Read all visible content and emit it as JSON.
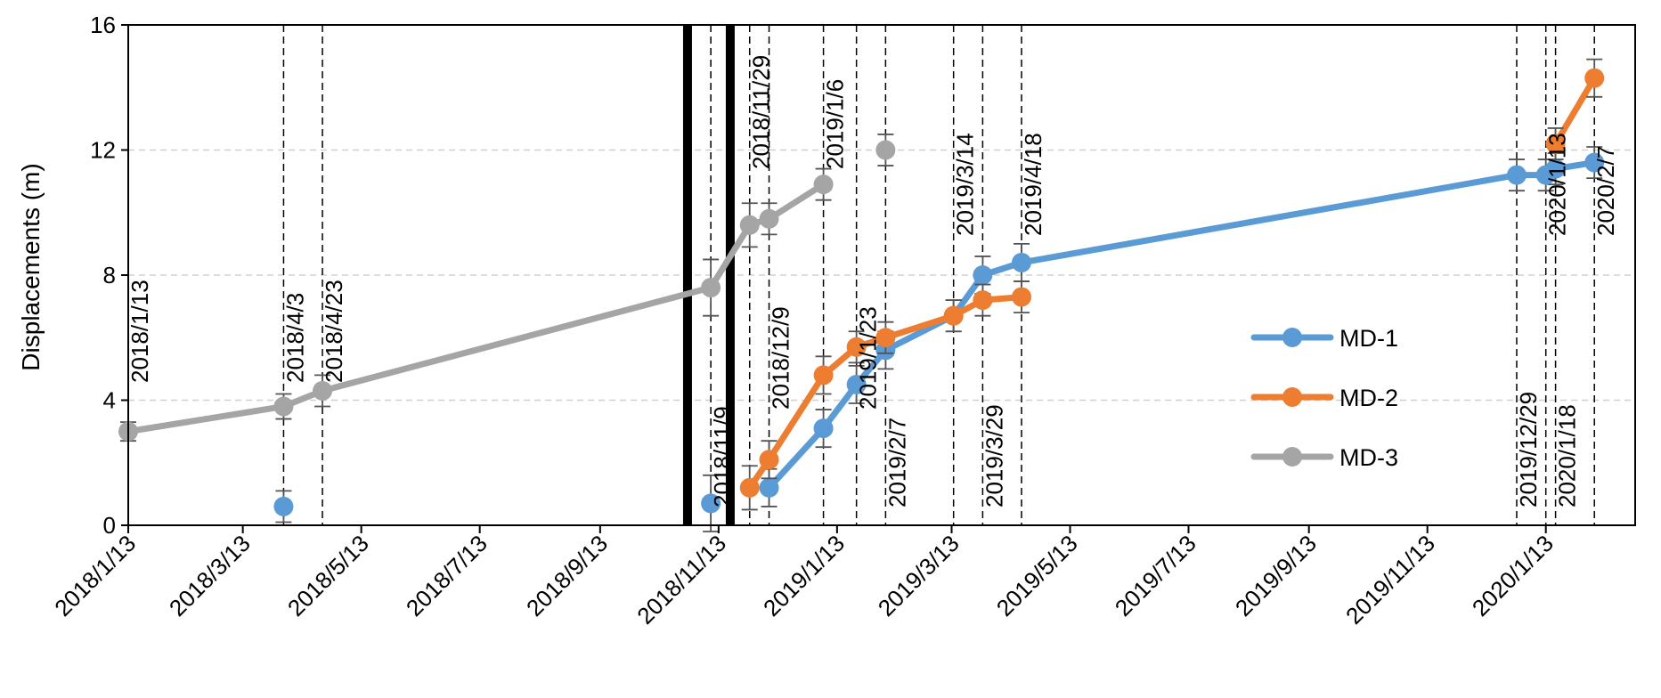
{
  "chart_data": {
    "type": "line",
    "title": "",
    "xlabel": "",
    "ylabel": "Displacements (m)",
    "x_axis": {
      "min": "2018-01-13",
      "max": "2020-02-28",
      "ticks": [
        {
          "date": "2018-01-13",
          "label": "2018/1/13"
        },
        {
          "date": "2018-03-13",
          "label": "2018/3/13"
        },
        {
          "date": "2018-05-13",
          "label": "2018/5/13"
        },
        {
          "date": "2018-07-13",
          "label": "2018/7/13"
        },
        {
          "date": "2018-09-13",
          "label": "2018/9/13"
        },
        {
          "date": "2018-11-13",
          "label": "2018/11/13"
        },
        {
          "date": "2019-01-13",
          "label": "2019/1/13"
        },
        {
          "date": "2019-03-13",
          "label": "2019/3/13"
        },
        {
          "date": "2019-05-13",
          "label": "2019/5/13"
        },
        {
          "date": "2019-07-13",
          "label": "2019/7/13"
        },
        {
          "date": "2019-09-13",
          "label": "2019/9/13"
        },
        {
          "date": "2019-11-13",
          "label": "2019/11/13"
        },
        {
          "date": "2020-01-13",
          "label": "2020/1/13"
        }
      ]
    },
    "y_axis": {
      "min": 0,
      "max": 16,
      "ticks": [
        0,
        4,
        8,
        12,
        16
      ]
    },
    "grid": {
      "y": true,
      "x": false
    },
    "legend": {
      "position": "center-right",
      "entries": [
        "MD-1",
        "MD-2",
        "MD-3"
      ]
    },
    "colors": {
      "MD-1": "#5B9BD5",
      "MD-2": "#ED7D31",
      "MD-3": "#A5A5A5"
    },
    "series": [
      {
        "name": "MD-1",
        "color": "#5B9BD5",
        "points": [
          {
            "x": "2018-04-03",
            "y": 0.6,
            "err": 0.5,
            "connected": false
          },
          {
            "x": "2018-11-09",
            "y": 0.7,
            "err": 0.9,
            "connected": false
          },
          {
            "x": "2018-12-09",
            "y": 1.2,
            "err": 0.6,
            "connected": true
          },
          {
            "x": "2019-01-06",
            "y": 3.1,
            "err": 0.6,
            "connected": true
          },
          {
            "x": "2019-01-23",
            "y": 4.5,
            "err": 0.6,
            "connected": true
          },
          {
            "x": "2019-02-07",
            "y": 5.6,
            "err": 0.6,
            "connected": true
          },
          {
            "x": "2019-03-14",
            "y": 6.7,
            "err": 0.5,
            "connected": true
          },
          {
            "x": "2019-03-29",
            "y": 8.0,
            "err": 0.6,
            "connected": true
          },
          {
            "x": "2019-04-18",
            "y": 8.4,
            "err": 0.6,
            "connected": true
          },
          {
            "x": "2019-12-29",
            "y": 11.2,
            "err": 0.5,
            "connected": true
          },
          {
            "x": "2020-01-13",
            "y": 11.2,
            "err": 0.5,
            "connected": true
          },
          {
            "x": "2020-01-18",
            "y": 11.4,
            "err": 0.5,
            "connected": true
          },
          {
            "x": "2020-02-07",
            "y": 11.6,
            "err": 0.5,
            "connected": true
          }
        ]
      },
      {
        "name": "MD-2",
        "color": "#ED7D31",
        "points": [
          {
            "x": "2018-11-29",
            "y": 1.2,
            "err": 0.7,
            "connected": true
          },
          {
            "x": "2018-12-09",
            "y": 2.1,
            "err": 0.6,
            "connected": true
          },
          {
            "x": "2019-01-06",
            "y": 4.8,
            "err": 0.6,
            "connected": true
          },
          {
            "x": "2019-01-23",
            "y": 5.7,
            "err": 0.5,
            "connected": true
          },
          {
            "x": "2019-02-07",
            "y": 6.0,
            "err": 0.5,
            "connected": true
          },
          {
            "x": "2019-03-14",
            "y": 6.7,
            "err": 0.5,
            "connected": true
          },
          {
            "x": "2019-03-29",
            "y": 7.2,
            "err": 0.5,
            "connected": true
          },
          {
            "x": "2019-04-18",
            "y": 7.3,
            "err": 0.5,
            "connected": true
          },
          {
            "x": "2020-01-18",
            "y": 12.2,
            "err": 0.5,
            "connected": true,
            "break_before": true
          },
          {
            "x": "2020-02-07",
            "y": 14.3,
            "err": 0.6,
            "connected": true
          }
        ]
      },
      {
        "name": "MD-3",
        "color": "#A5A5A5",
        "points": [
          {
            "x": "2018-01-13",
            "y": 3.0,
            "err": 0.3,
            "connected": true
          },
          {
            "x": "2018-04-03",
            "y": 3.8,
            "err": 0.4,
            "connected": true
          },
          {
            "x": "2018-04-23",
            "y": 4.3,
            "err": 0.5,
            "connected": true
          },
          {
            "x": "2018-11-09",
            "y": 7.6,
            "err": 0.9,
            "connected": true
          },
          {
            "x": "2018-11-29",
            "y": 9.6,
            "err": 0.7,
            "connected": true
          },
          {
            "x": "2018-12-09",
            "y": 9.8,
            "err": 0.5,
            "connected": true
          },
          {
            "x": "2019-01-06",
            "y": 10.9,
            "err": 0.5,
            "connected": true
          },
          {
            "x": "2019-02-07",
            "y": 12.0,
            "err": 0.5,
            "connected": false
          }
        ]
      }
    ],
    "reference_lines": [
      {
        "date": "2018-01-13",
        "label": "2018/1/13",
        "label_pos": "high"
      },
      {
        "date": "2018-04-03",
        "label": "2018/4/3",
        "label_pos": "high"
      },
      {
        "date": "2018-04-23",
        "label": "2018/4/23",
        "label_pos": "high"
      },
      {
        "date": "2018-11-09",
        "label": "2018/11/9",
        "label_pos": "low"
      },
      {
        "date": "2018-11-29",
        "label": "2018/11/29",
        "label_pos": "top"
      },
      {
        "date": "2018-12-09",
        "label": "2018/12/9",
        "label_pos": "mid"
      },
      {
        "date": "2019-01-06",
        "label": "2019/1/6",
        "label_pos": "top"
      },
      {
        "date": "2019-01-23",
        "label": "2019/1/23",
        "label_pos": "mid"
      },
      {
        "date": "2019-02-07",
        "label": "2019/2/7",
        "label_pos": "low"
      },
      {
        "date": "2019-03-14",
        "label": "2019/3/14",
        "label_pos": "upper"
      },
      {
        "date": "2019-03-29",
        "label": "2019/3/29",
        "label_pos": "low"
      },
      {
        "date": "2019-04-18",
        "label": "2019/4/18",
        "label_pos": "upper"
      },
      {
        "date": "2019-12-29",
        "label": "2019/12/29",
        "label_pos": "low"
      },
      {
        "date": "2020-01-13",
        "label": "2020/1/13",
        "label_pos": "upper"
      },
      {
        "date": "2020-01-18",
        "label": "2020/1/18",
        "label_pos": "low"
      },
      {
        "date": "2020-02-07",
        "label": "2020/2/7",
        "label_pos": "upper"
      }
    ],
    "event_bars": [
      {
        "date": "2018-10-28"
      },
      {
        "date": "2018-11-19"
      }
    ]
  }
}
